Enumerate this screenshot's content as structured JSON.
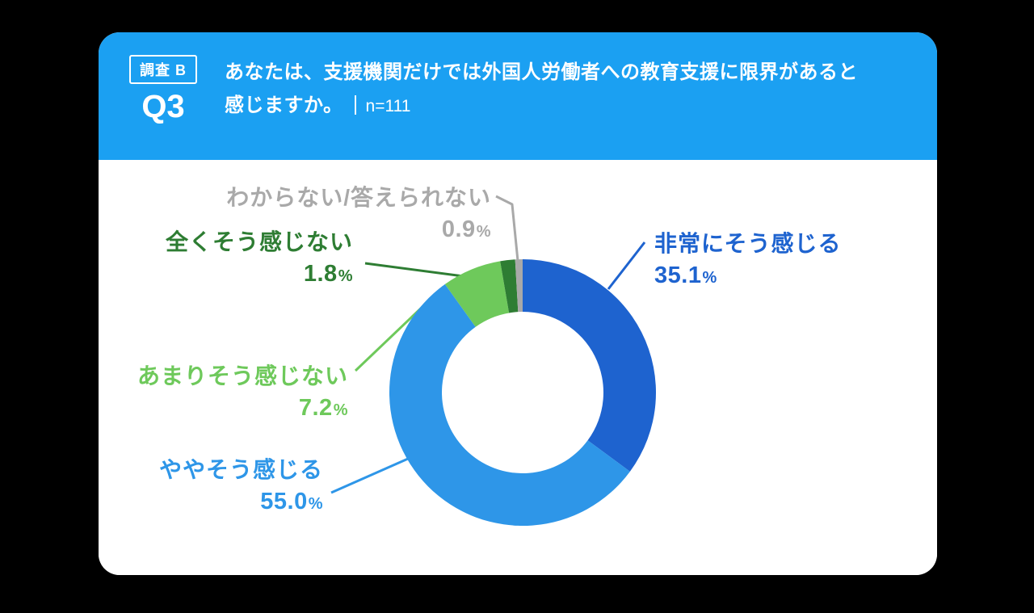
{
  "colors": {
    "page_bg": "#000000",
    "card_bg": "#FFFFFF",
    "header_blue": "#1BA0F2",
    "header_text": "#FFFFFF"
  },
  "header": {
    "badge": "調査 B",
    "question_no": "Q3",
    "question_line1": "あなたは、支援機関だけでは外国人労働者への教育支援に限界があると",
    "question_line2": "感じますか。",
    "sample": "n=111"
  },
  "chart_data": {
    "type": "pie",
    "subtype": "donut",
    "title": "あなたは、支援機関だけでは外国人労働者への教育支援に限界があると感じますか。",
    "sample": "n=111",
    "unit": "%",
    "start_angle_deg": 0,
    "direction": "clockwise",
    "legend_position": "around-labels-with-leader-lines",
    "categories": [
      "非常にそう感じる",
      "ややそう感じる",
      "あまりそう感じない",
      "全くそう感じない",
      "わからない/答えられない"
    ],
    "values": [
      35.1,
      55.0,
      7.2,
      1.8,
      0.9
    ],
    "value_labels": [
      "35.1",
      "55.0",
      "7.2",
      "1.8",
      "0.9"
    ],
    "colors": [
      "#1E63CF",
      "#2E96E8",
      "#6EC95B",
      "#2E7D33",
      "#A9A9A9"
    ]
  }
}
